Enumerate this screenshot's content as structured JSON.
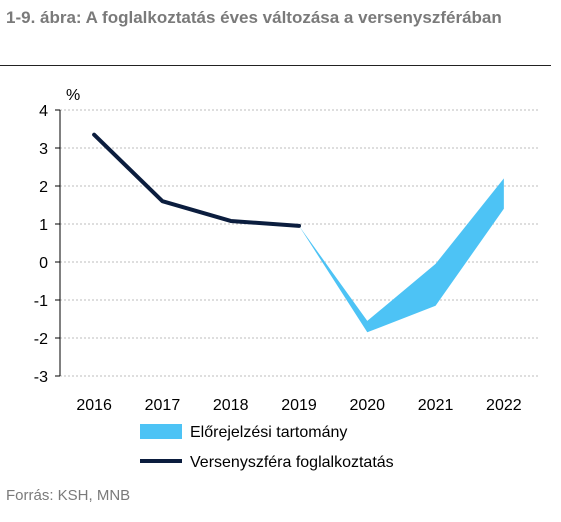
{
  "title": "1-9. ábra: A foglalkoztatás éves változása a versenyszférában",
  "source": "Forrás: KSH, MNB",
  "chart_data": {
    "type": "line",
    "title": "1-9. ábra: A foglalkoztatás éves változása a versenyszférában",
    "ylabel": "%",
    "xlabel": "",
    "ylim": [
      -3,
      4
    ],
    "yticks": [
      "4",
      "3",
      "2",
      "1",
      "0",
      "-1",
      "-2",
      "-3"
    ],
    "categories": [
      "2016",
      "2017",
      "2018",
      "2019",
      "2020",
      "2021",
      "2022"
    ],
    "grid": true,
    "legend_placement": "bottom",
    "series": [
      {
        "name": "Versenyszféra foglalkoztatás",
        "kind": "line",
        "color": "#0b1d3e",
        "values": [
          3.35,
          1.6,
          1.08,
          0.95,
          null,
          null,
          null
        ]
      },
      {
        "name": "Előrejelzési tartomány",
        "kind": "range",
        "color": "#4dc3f5",
        "lower": [
          null,
          null,
          null,
          0.95,
          -1.85,
          -1.15,
          1.4
        ],
        "upper": [
          null,
          null,
          null,
          0.95,
          -1.55,
          -0.05,
          2.2
        ]
      }
    ]
  }
}
